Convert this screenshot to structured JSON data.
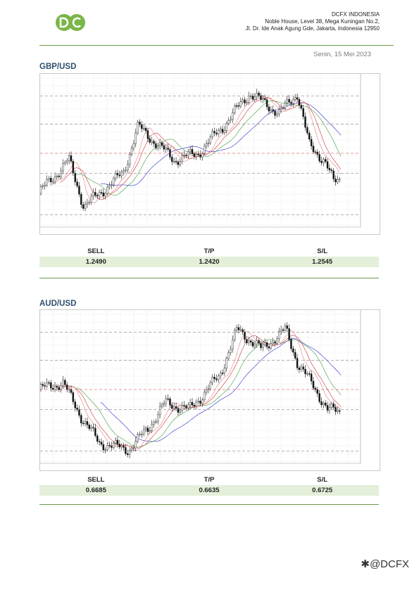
{
  "header": {
    "logo_text": "DC",
    "company_name": "DCFX INDONESIA",
    "address_line1": "Noble House, Level 38, Mega Kuningan No.2,",
    "address_line2": "Jl. Dr. Ide Anak Agung Gde, Jakarta, Indonesia 12950",
    "date": "Senin, 15 Mei 2023"
  },
  "colors": {
    "brand": "#7ab648",
    "rule": "#6a9a4a",
    "title": "#2f4f6f",
    "table_fill": "#e4efd9"
  },
  "sections": [
    {
      "pair": "GBP/USD",
      "table": {
        "headers": [
          "SELL",
          "T/P",
          "S/L"
        ],
        "values": [
          "1.2490",
          "1.2420",
          "1.2545"
        ]
      }
    },
    {
      "pair": "AUD/USD",
      "table": {
        "headers": [
          "SELL",
          "T/P",
          "S/L"
        ],
        "values": [
          "0.6685",
          "0.6635",
          "0.6725"
        ]
      }
    }
  ],
  "footer": {
    "handle": "@DCFX"
  }
}
